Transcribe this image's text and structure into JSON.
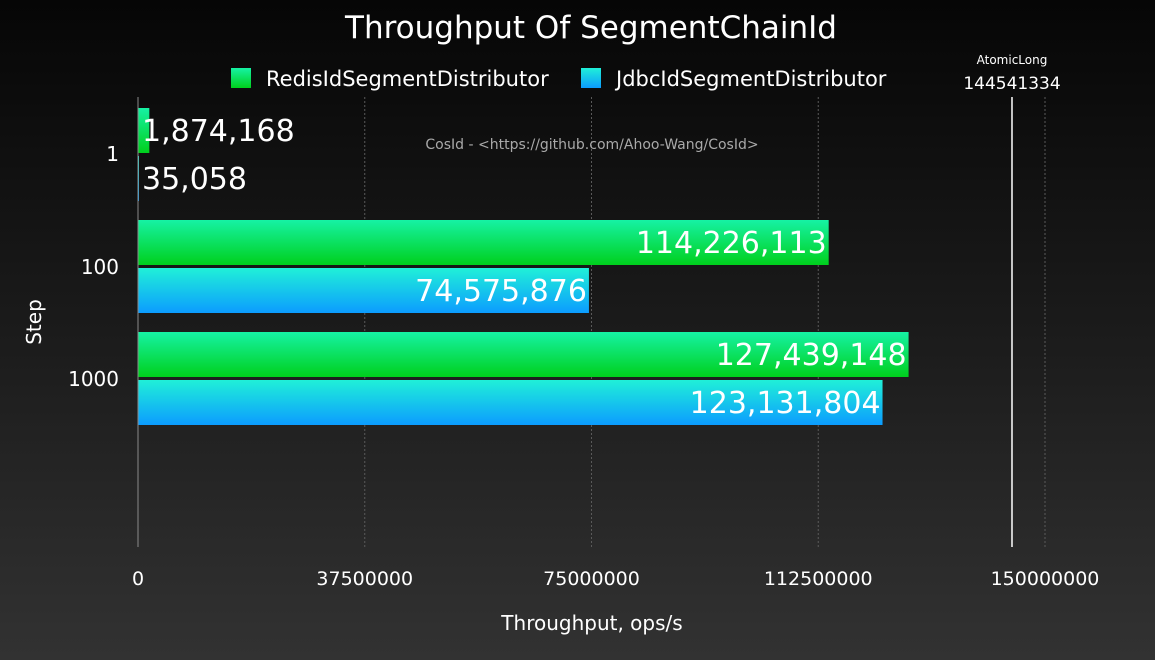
{
  "chart_data": {
    "type": "bar",
    "orientation": "horizontal",
    "title": "Throughput Of SegmentChainId",
    "xlabel": "Throughput, ops/s",
    "ylabel": "Step",
    "categories": [
      "1",
      "100",
      "1000"
    ],
    "series": [
      {
        "name": "RedisIdSegmentDistributor",
        "values": [
          1874168,
          114226113,
          127439148
        ],
        "labels": [
          "1,874,168",
          "114,226,113",
          "127,439,148"
        ],
        "color_start": "#00d01c",
        "color_end": "#16f2a4"
      },
      {
        "name": "JdbcIdSegmentDistributor",
        "values": [
          35058,
          74575876,
          123131804
        ],
        "labels": [
          "35,058",
          "74,575,876",
          "123,131,804"
        ],
        "color_start": "#0c9cff",
        "color_end": "#20f0d8"
      }
    ],
    "xlim": [
      0,
      165000000
    ],
    "xticks": [
      0,
      37500000,
      75000000,
      112500000,
      150000000
    ],
    "xtick_labels": [
      "0",
      "37500000",
      "75000000",
      "112500000",
      "150000000"
    ],
    "reference_line": {
      "label": "AtomicLong",
      "value": 144541334,
      "value_label": "144541334",
      "color": "#ffffff"
    },
    "annotation": "CosId - <https://github.com/Ahoo-Wang/CosId>",
    "grid": true,
    "legend_position": "top"
  }
}
